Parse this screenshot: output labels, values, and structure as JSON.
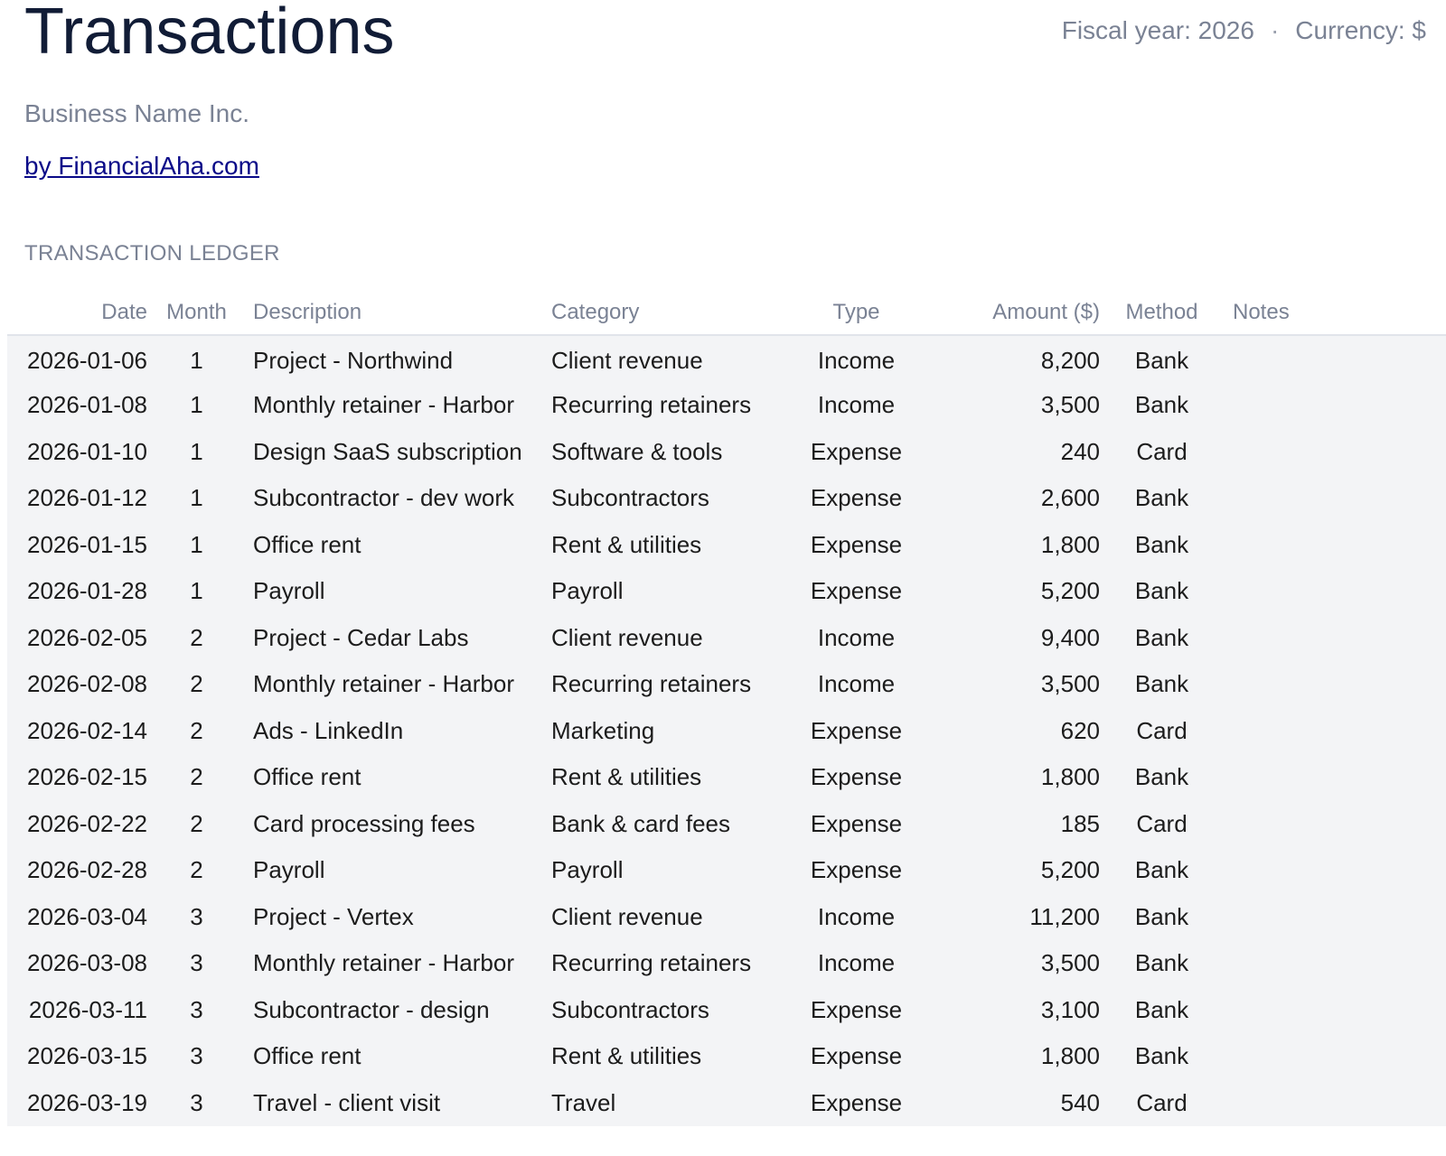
{
  "header": {
    "title": "Transactions",
    "fiscal_year": "Fiscal year: 2026",
    "separator": "·",
    "currency": "Currency: $",
    "business_name": "Business Name Inc.",
    "credit_link": "by FinancialAha.com"
  },
  "ledger": {
    "section_label": "TRANSACTION LEDGER",
    "columns": [
      "Date",
      "Month",
      "Description",
      "Category",
      "Type",
      "Amount ($)",
      "Method",
      "Notes"
    ],
    "rows": [
      [
        "2026-01-06",
        "1",
        "Project - Northwind",
        "Client revenue",
        "Income",
        "8,200",
        "Bank",
        ""
      ],
      [
        "2026-01-08",
        "1",
        "Monthly retainer - Harbor",
        "Recurring retainers",
        "Income",
        "3,500",
        "Bank",
        ""
      ],
      [
        "2026-01-10",
        "1",
        "Design SaaS subscription",
        "Software & tools",
        "Expense",
        "240",
        "Card",
        ""
      ],
      [
        "2026-01-12",
        "1",
        "Subcontractor - dev work",
        "Subcontractors",
        "Expense",
        "2,600",
        "Bank",
        ""
      ],
      [
        "2026-01-15",
        "1",
        "Office rent",
        "Rent & utilities",
        "Expense",
        "1,800",
        "Bank",
        ""
      ],
      [
        "2026-01-28",
        "1",
        "Payroll",
        "Payroll",
        "Expense",
        "5,200",
        "Bank",
        ""
      ],
      [
        "2026-02-05",
        "2",
        "Project - Cedar Labs",
        "Client revenue",
        "Income",
        "9,400",
        "Bank",
        ""
      ],
      [
        "2026-02-08",
        "2",
        "Monthly retainer - Harbor",
        "Recurring retainers",
        "Income",
        "3,500",
        "Bank",
        ""
      ],
      [
        "2026-02-14",
        "2",
        "Ads - LinkedIn",
        "Marketing",
        "Expense",
        "620",
        "Card",
        ""
      ],
      [
        "2026-02-15",
        "2",
        "Office rent",
        "Rent & utilities",
        "Expense",
        "1,800",
        "Bank",
        ""
      ],
      [
        "2026-02-22",
        "2",
        "Card processing fees",
        "Bank & card fees",
        "Expense",
        "185",
        "Card",
        ""
      ],
      [
        "2026-02-28",
        "2",
        "Payroll",
        "Payroll",
        "Expense",
        "5,200",
        "Bank",
        ""
      ],
      [
        "2026-03-04",
        "3",
        "Project - Vertex",
        "Client revenue",
        "Income",
        "11,200",
        "Bank",
        ""
      ],
      [
        "2026-03-08",
        "3",
        "Monthly retainer - Harbor",
        "Recurring retainers",
        "Income",
        "3,500",
        "Bank",
        ""
      ],
      [
        "2026-03-11",
        "3",
        "Subcontractor - design",
        "Subcontractors",
        "Expense",
        "3,100",
        "Bank",
        ""
      ],
      [
        "2026-03-15",
        "3",
        "Office rent",
        "Rent & utilities",
        "Expense",
        "1,800",
        "Bank",
        ""
      ],
      [
        "2026-03-19",
        "3",
        "Travel - client visit",
        "Travel",
        "Expense",
        "540",
        "Card",
        ""
      ]
    ]
  },
  "colors": {
    "title": "#111c36",
    "muted": "#7a8294",
    "link": "#0a0a88",
    "table_body_bg": "#f3f4f6"
  }
}
